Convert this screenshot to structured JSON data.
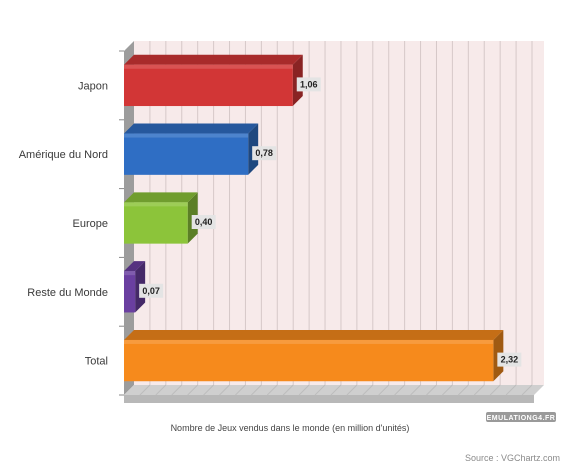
{
  "chart_data": {
    "type": "bar",
    "orientation": "horizontal",
    "style": "3d",
    "categories": [
      "Japon",
      "Amérique du Nord",
      "Europe",
      "Reste du Monde",
      "Total"
    ],
    "values": [
      1.06,
      0.78,
      0.4,
      0.07,
      2.32
    ],
    "value_labels": [
      "1,06",
      "0,78",
      "0,40",
      "0,07",
      "2,32"
    ],
    "colors": [
      "#d23636",
      "#2f6ec4",
      "#8cc43a",
      "#6a3fa0",
      "#f68a1c"
    ],
    "xlabel": "Nombre de Jeux vendus dans le monde (en million d'unités)",
    "ylabel": "",
    "xlim": [
      0,
      2.5
    ],
    "grid": true,
    "legend": "none"
  },
  "source_text": "Source : VGChartz.com",
  "watermark": "EMULATIONG4.FR",
  "colors": {
    "plot_background": "#f7eaea",
    "grid": "#d6c8c8",
    "floor": "#cfcfcf"
  }
}
